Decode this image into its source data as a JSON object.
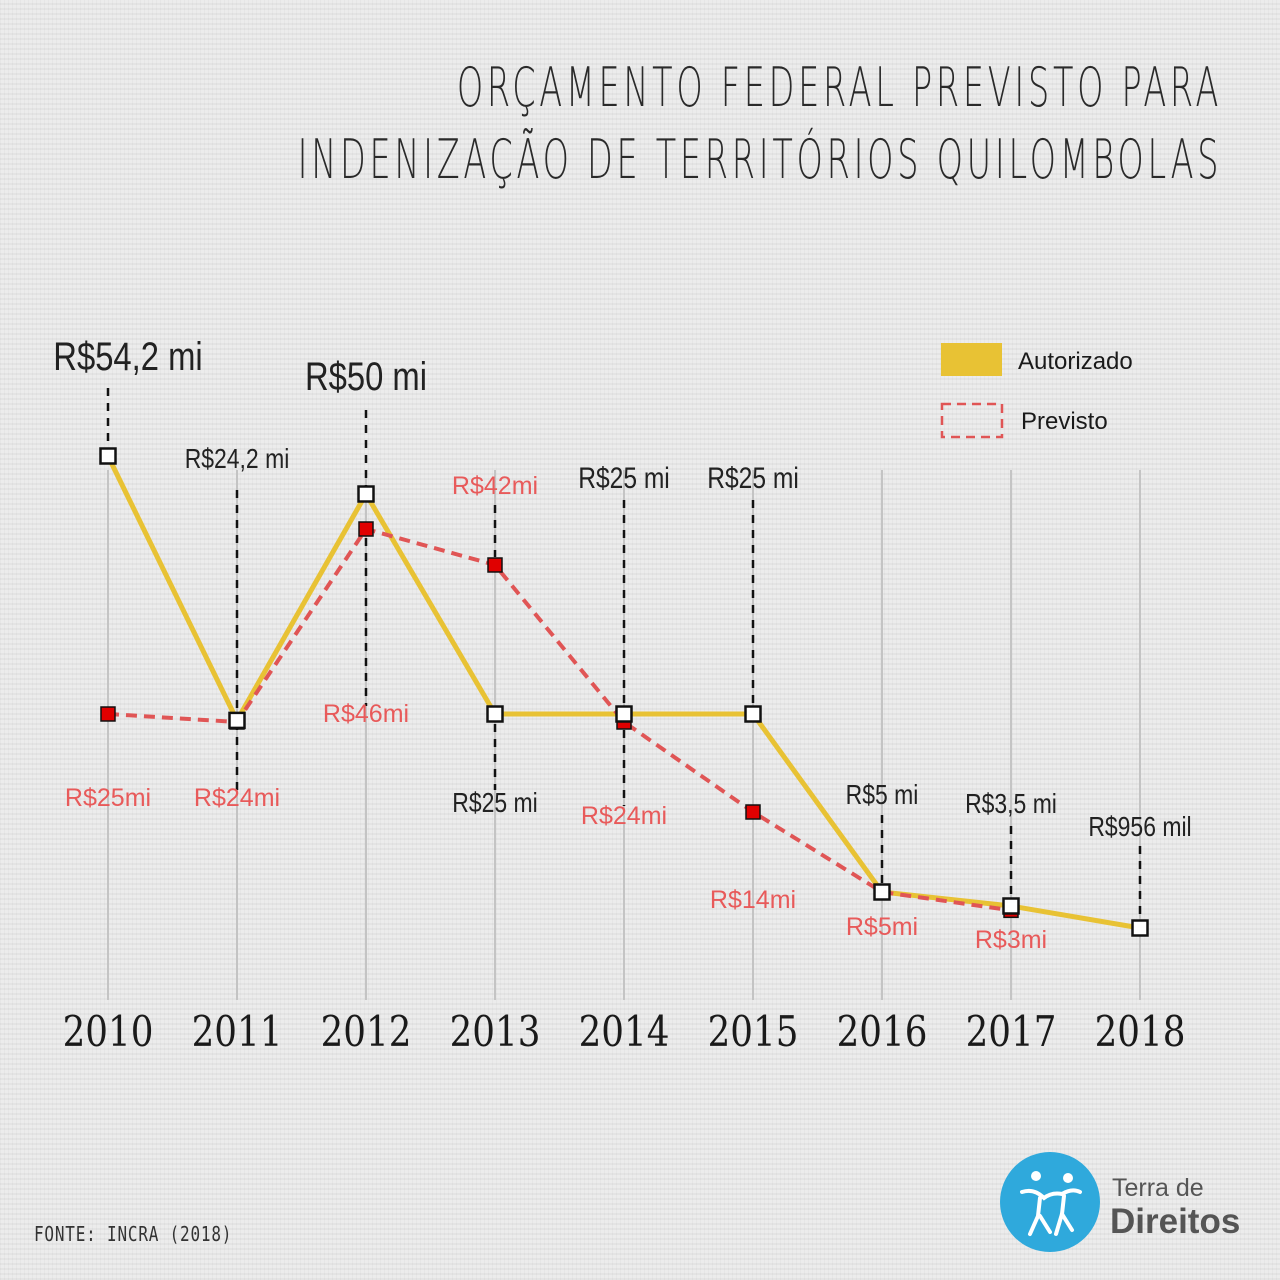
{
  "title_lines": [
    "ORÇAMENTO FEDERAL PREVISTO PARA",
    "INDENIZAÇÃO DE TERRITÓRIOS QUILOMBOLAS"
  ],
  "source": "FONTE: INCRA (2018)",
  "logo": {
    "line1": "Terra de",
    "line2": "Direitos"
  },
  "colors": {
    "autorizado": "#e8c234",
    "previsto": "#e05555",
    "marker_red": "#e00000",
    "text": "#222222",
    "label_red": "#e85a5a"
  },
  "chart_data": {
    "type": "line",
    "x": [
      "2010",
      "2011",
      "2012",
      "2013",
      "2014",
      "2015",
      "2016",
      "2017",
      "2018"
    ],
    "ylabel": "",
    "xlabel": "",
    "legend_position": "top-right",
    "series": [
      {
        "name": "Autorizado",
        "style": "solid",
        "values": [
          54.2,
          24.2,
          50,
          25,
          25,
          25,
          5,
          3.5,
          0.956
        ],
        "labels": [
          "R$54,2 mi",
          "R$24,2 mi",
          "R$50 mi",
          "R$25 mi",
          "R$25 mi",
          "R$25 mi",
          "R$5 mi",
          "R$3,5 mi",
          "R$956 mil"
        ]
      },
      {
        "name": "Previsto",
        "style": "dashed",
        "values": [
          25,
          24,
          46,
          42,
          24,
          14,
          5,
          3,
          null
        ],
        "labels": [
          "R$25mi",
          "R$24mi",
          "R$46mi",
          "R$42mi",
          "R$24mi",
          "R$14mi",
          "R$5mi",
          "R$3mi",
          null
        ]
      }
    ]
  }
}
